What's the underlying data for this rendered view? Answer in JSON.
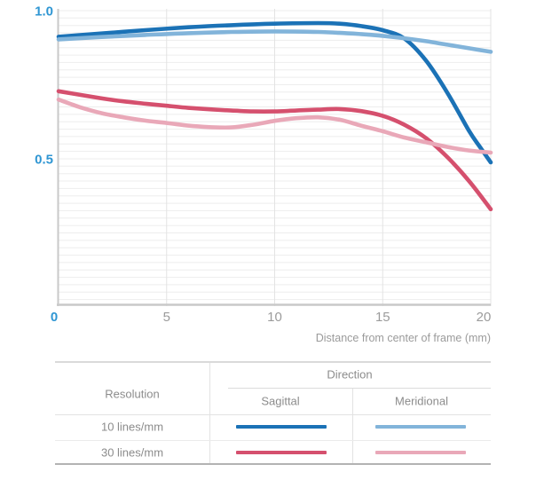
{
  "chart_data": {
    "type": "line",
    "title": "",
    "xlabel": "Distance from center of frame (mm)",
    "ylabel": "",
    "xlim": [
      0,
      20
    ],
    "ylim": [
      0,
      1.0
    ],
    "x_ticks": [
      0,
      5,
      10,
      15,
      20
    ],
    "x_tick_labels": [
      "0",
      "5",
      "10",
      "15",
      "20"
    ],
    "y_tick_labels": [
      "1.0",
      "0.5"
    ],
    "y_tick_values": [
      1.0,
      0.5
    ],
    "legend_position": "table below chart",
    "grid": {
      "horizontal_minor_step": 0.025,
      "vertical_at_x_ticks": true,
      "h_color": "#ededed",
      "v_color": "#e3e3e3"
    },
    "series": [
      {
        "name": "10 lines/mm Sagittal",
        "color": "#1b72b6",
        "points": [
          [
            0,
            0.912
          ],
          [
            2,
            0.923
          ],
          [
            4,
            0.934
          ],
          [
            6,
            0.944
          ],
          [
            8,
            0.951
          ],
          [
            10,
            0.956
          ],
          [
            12,
            0.958
          ],
          [
            13,
            0.956
          ],
          [
            14,
            0.948
          ],
          [
            15,
            0.934
          ],
          [
            16,
            0.906
          ],
          [
            17,
            0.832
          ],
          [
            18,
            0.722
          ],
          [
            19,
            0.594
          ],
          [
            19.5,
            0.54
          ],
          [
            20,
            0.488
          ]
        ]
      },
      {
        "name": "10 lines/mm Meridional",
        "color": "#82b4da",
        "points": [
          [
            0,
            0.903
          ],
          [
            2,
            0.911
          ],
          [
            4,
            0.918
          ],
          [
            6,
            0.924
          ],
          [
            8,
            0.928
          ],
          [
            10,
            0.93
          ],
          [
            12,
            0.928
          ],
          [
            14,
            0.921
          ],
          [
            15,
            0.915
          ],
          [
            16,
            0.907
          ],
          [
            17,
            0.897
          ],
          [
            18,
            0.885
          ],
          [
            19,
            0.873
          ],
          [
            20,
            0.861
          ]
        ]
      },
      {
        "name": "30 lines/mm Sagittal",
        "color": "#d5506e",
        "points": [
          [
            0,
            0.728
          ],
          [
            1,
            0.716
          ],
          [
            2,
            0.704
          ],
          [
            3,
            0.694
          ],
          [
            4,
            0.686
          ],
          [
            5,
            0.679
          ],
          [
            6,
            0.672
          ],
          [
            7,
            0.667
          ],
          [
            8,
            0.663
          ],
          [
            9,
            0.66
          ],
          [
            10,
            0.66
          ],
          [
            11,
            0.663
          ],
          [
            12,
            0.666
          ],
          [
            13,
            0.668
          ],
          [
            14,
            0.661
          ],
          [
            15,
            0.645
          ],
          [
            16,
            0.615
          ],
          [
            17,
            0.57
          ],
          [
            18,
            0.505
          ],
          [
            19,
            0.425
          ],
          [
            20,
            0.33
          ]
        ]
      },
      {
        "name": "30 lines/mm Meridional",
        "color": "#e9a8b8",
        "points": [
          [
            0,
            0.7
          ],
          [
            1,
            0.674
          ],
          [
            2,
            0.654
          ],
          [
            3,
            0.64
          ],
          [
            4,
            0.629
          ],
          [
            5,
            0.621
          ],
          [
            6,
            0.612
          ],
          [
            7,
            0.607
          ],
          [
            8,
            0.606
          ],
          [
            9,
            0.615
          ],
          [
            10,
            0.628
          ],
          [
            11,
            0.637
          ],
          [
            12,
            0.64
          ],
          [
            13,
            0.632
          ],
          [
            14,
            0.612
          ],
          [
            15,
            0.593
          ],
          [
            16,
            0.572
          ],
          [
            17,
            0.556
          ],
          [
            18,
            0.54
          ],
          [
            19,
            0.528
          ],
          [
            20,
            0.521
          ]
        ]
      }
    ]
  },
  "axis": {
    "x_axis_title": "Distance from center of frame (mm)",
    "tick_label_color": "#9b9b9b",
    "zero_and_y_label_color": "#2f96d3",
    "axis_line_color": "#c9c9c9"
  },
  "legend_table": {
    "resolution_header": "Resolution",
    "direction_header": "Direction",
    "sagittal_header": "Sagittal",
    "meridional_header": "Meridional",
    "rows": [
      {
        "label": "10 lines/mm",
        "sagittal_color": "#1b72b6",
        "meridional_color": "#82b4da"
      },
      {
        "label": "30 lines/mm",
        "sagittal_color": "#d5506e",
        "meridional_color": "#e9a8b8"
      }
    ]
  }
}
